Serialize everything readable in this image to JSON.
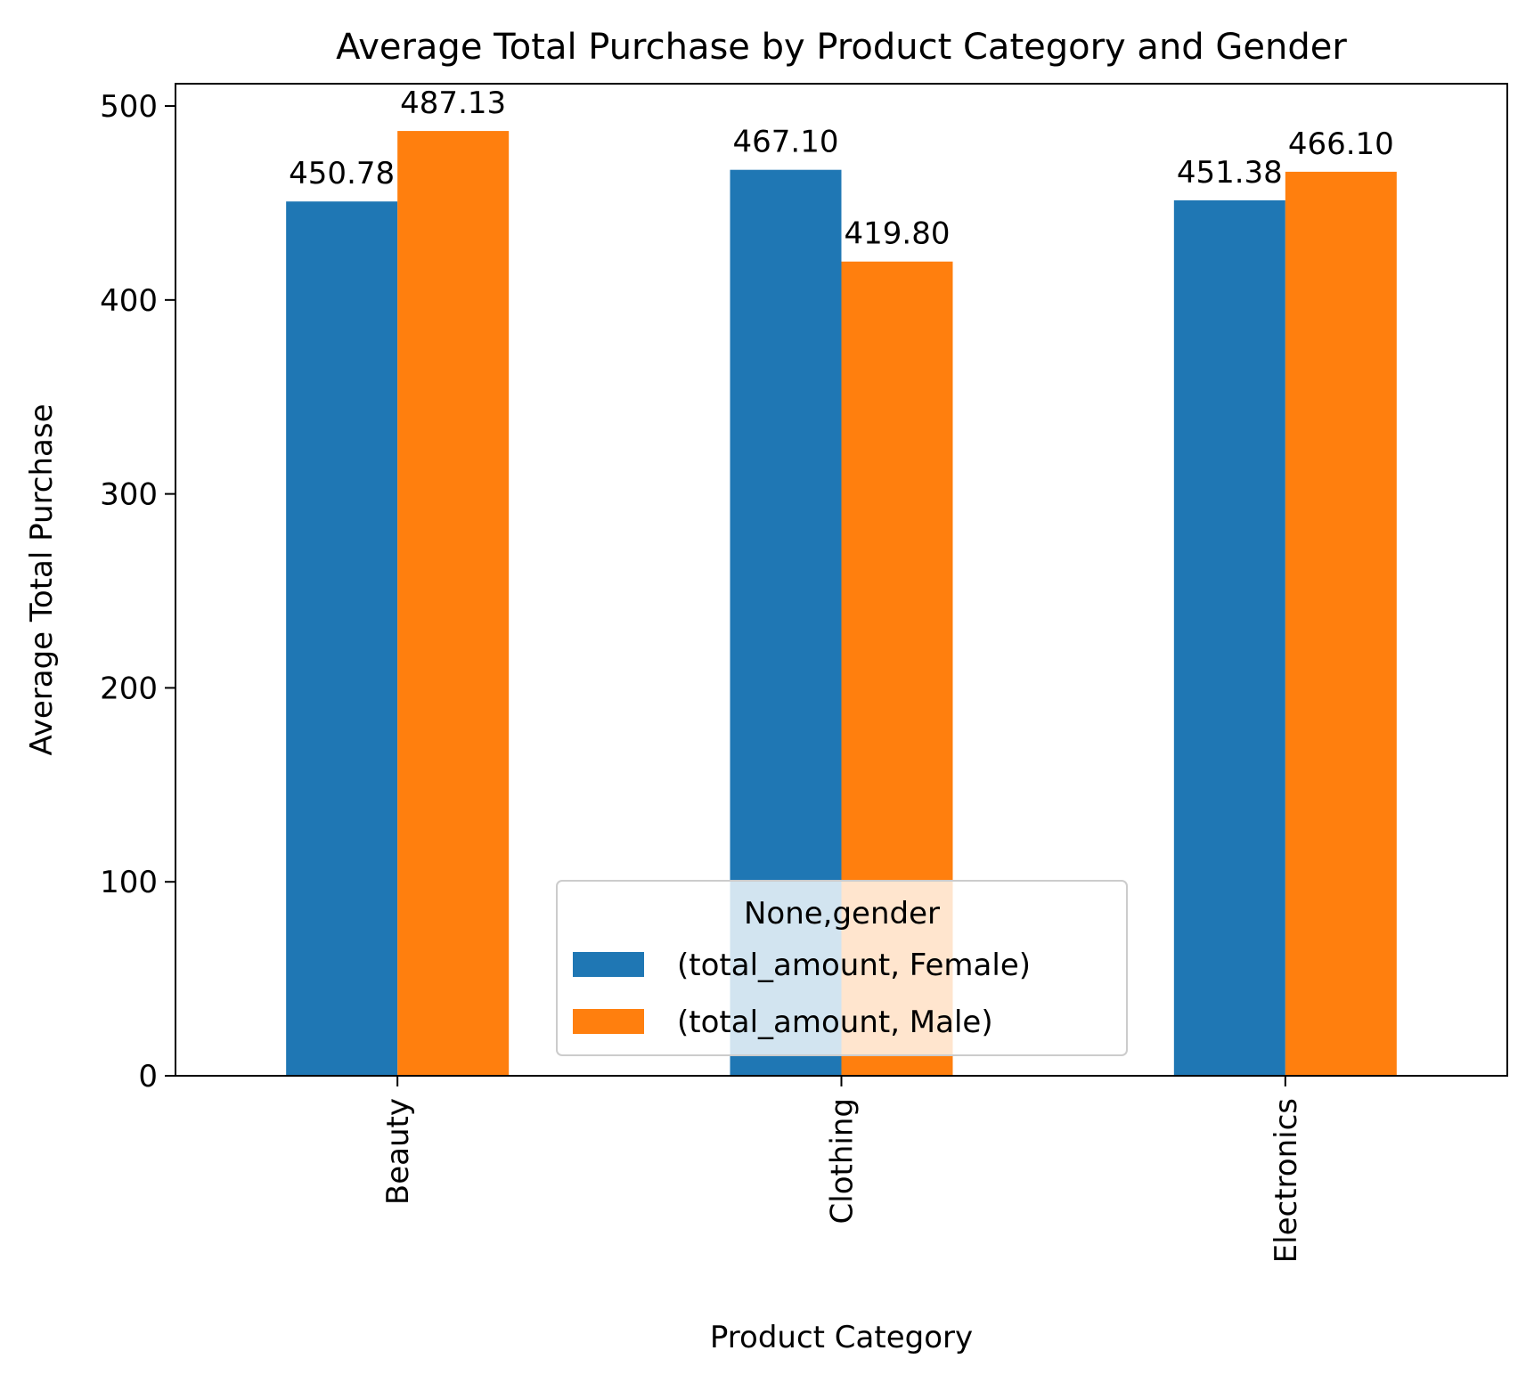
{
  "chart_data": {
    "type": "bar",
    "title": "Average Total Purchase by Product Category and Gender",
    "xlabel": "Product Category",
    "ylabel": "Average Total Purchase",
    "categories": [
      "Beauty",
      "Clothing",
      "Electronics"
    ],
    "series": [
      {
        "name": "(total_amount, Female)",
        "color": "#1f77b4",
        "values": [
          450.78,
          467.1,
          451.38
        ],
        "labels": [
          "450.78",
          "467.10",
          "451.38"
        ]
      },
      {
        "name": "(total_amount, Male)",
        "color": "#ff7f0e",
        "values": [
          487.13,
          419.8,
          466.1
        ],
        "labels": [
          "487.13",
          "419.80",
          "466.10"
        ]
      }
    ],
    "ylim": [
      0,
      511.5
    ],
    "yticks": [
      0,
      100,
      200,
      300,
      400,
      500
    ],
    "ytick_labels": [
      "0",
      "100",
      "200",
      "300",
      "400",
      "500"
    ],
    "grid": false,
    "legend": {
      "title": "None,gender",
      "position": "lower-center"
    }
  }
}
